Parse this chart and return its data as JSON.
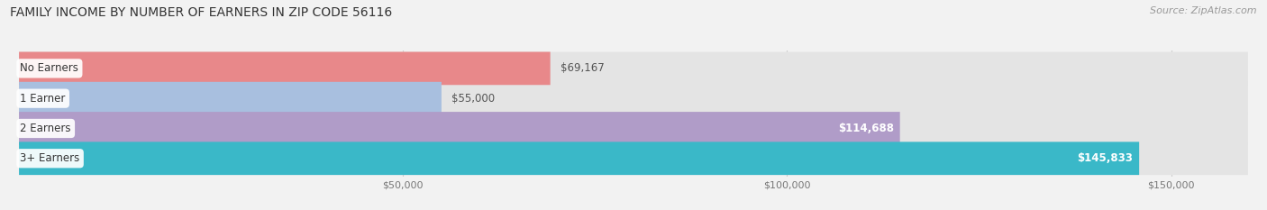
{
  "title": "FAMILY INCOME BY NUMBER OF EARNERS IN ZIP CODE 56116",
  "source": "Source: ZipAtlas.com",
  "categories": [
    "No Earners",
    "1 Earner",
    "2 Earners",
    "3+ Earners"
  ],
  "values": [
    69167,
    55000,
    114688,
    145833
  ],
  "bar_colors": [
    "#e8888a",
    "#a8bfdf",
    "#b09cc8",
    "#3ab8c8"
  ],
  "label_colors": [
    "#555555",
    "#555555",
    "#ffffff",
    "#ffffff"
  ],
  "bg_color": "#f2f2f2",
  "bar_bg_color": "#e4e4e4",
  "xlim_max": 160000,
  "xticks": [
    50000,
    100000,
    150000
  ],
  "xtick_labels": [
    "$50,000",
    "$100,000",
    "$150,000"
  ],
  "title_fontsize": 10,
  "source_fontsize": 8,
  "bar_label_fontsize": 8.5,
  "category_fontsize": 8.5,
  "tick_fontsize": 8
}
